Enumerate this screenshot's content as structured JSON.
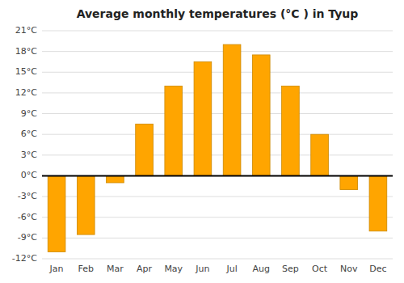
{
  "chart_data": {
    "type": "bar",
    "title": "Average monthly temperatures (°C ) in Tyup",
    "categories": [
      "Jan",
      "Feb",
      "Mar",
      "Apr",
      "May",
      "Jun",
      "Jul",
      "Aug",
      "Sep",
      "Oct",
      "Nov",
      "Dec"
    ],
    "values": [
      -11,
      -8.5,
      -1,
      7.5,
      13,
      16.5,
      19,
      17.5,
      13,
      6,
      -2,
      -8
    ],
    "color": "#FFA500",
    "ylim": [
      -12,
      21
    ],
    "yticks": [
      {
        "value": -12,
        "label": "-12°C"
      },
      {
        "value": -9,
        "label": "-9°C"
      },
      {
        "value": -6,
        "label": "-6°C"
      },
      {
        "value": -3,
        "label": "-3°C"
      },
      {
        "value": 0,
        "label": "0°C"
      },
      {
        "value": 3,
        "label": "3°C"
      },
      {
        "value": 6,
        "label": "6°C"
      },
      {
        "value": 9,
        "label": "9°C"
      },
      {
        "value": 12,
        "label": "12°C"
      },
      {
        "value": 15,
        "label": "15°C"
      },
      {
        "value": 18,
        "label": "18°C"
      },
      {
        "value": 21,
        "label": "21°C"
      }
    ],
    "grid": true
  }
}
